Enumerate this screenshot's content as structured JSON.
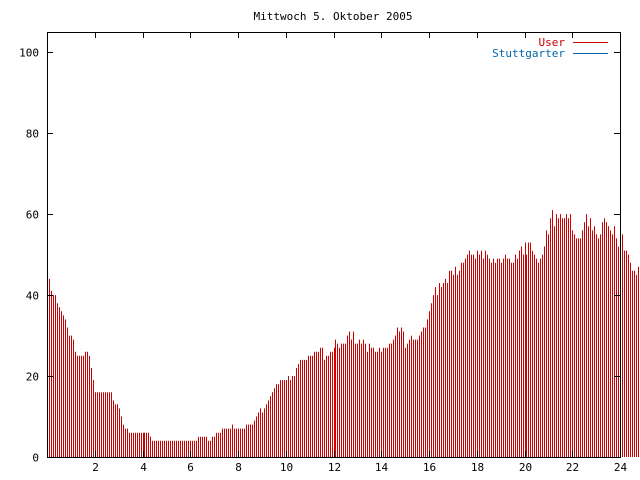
{
  "chart_data": {
    "type": "bar",
    "title": "Mittwoch 5. Oktober 2005",
    "xlabel": "",
    "ylabel": "",
    "xlim": [
      0,
      24
    ],
    "ylim": [
      0,
      105
    ],
    "x_ticks": [
      2,
      4,
      6,
      8,
      10,
      12,
      14,
      16,
      18,
      20,
      22,
      24
    ],
    "x_tick_labels": [
      "2",
      "4",
      "6",
      "8",
      "10",
      "12",
      "14",
      "16",
      "18",
      "20",
      "22",
      "24"
    ],
    "y_ticks": [
      0,
      20,
      40,
      60,
      80,
      100
    ],
    "y_tick_labels": [
      "0",
      "20",
      "40",
      "60",
      "80",
      "100"
    ],
    "grid": false,
    "legend_position": "top-right",
    "series": [
      {
        "name": "User",
        "color": "#cc0000",
        "style": "impulses",
        "step_minutes": 5,
        "values": [
          45,
          44,
          41,
          40,
          40,
          38,
          37,
          36,
          35,
          34,
          32,
          30,
          30,
          29,
          26,
          25,
          25,
          25,
          25,
          26,
          26,
          25,
          22,
          19,
          16,
          16,
          16,
          16,
          16,
          16,
          16,
          16,
          16,
          14,
          13,
          13,
          12,
          10,
          8,
          7,
          7,
          6,
          6,
          6,
          6,
          6,
          6,
          6,
          6,
          6,
          6,
          6,
          5,
          4,
          4,
          4,
          4,
          4,
          4,
          4,
          4,
          4,
          4,
          4,
          4,
          4,
          4,
          4,
          4,
          4,
          4,
          4,
          4,
          4,
          4,
          4,
          5,
          5,
          5,
          5,
          5,
          4,
          4,
          5,
          5,
          6,
          6,
          6,
          7,
          7,
          7,
          7,
          7,
          8,
          7,
          7,
          7,
          7,
          7,
          7,
          8,
          8,
          8,
          8,
          9,
          10,
          11,
          12,
          11,
          12,
          13,
          14,
          15,
          16,
          17,
          18,
          18,
          19,
          19,
          19,
          19,
          20,
          19,
          20,
          20,
          22,
          23,
          24,
          24,
          24,
          24,
          25,
          25,
          25,
          26,
          26,
          26,
          27,
          27,
          24,
          25,
          25,
          26,
          26,
          27,
          29,
          28,
          27,
          28,
          28,
          28,
          30,
          31,
          29,
          31,
          28,
          28,
          29,
          28,
          29,
          28,
          26,
          28,
          27,
          27,
          26,
          26,
          27,
          26,
          27,
          27,
          27,
          28,
          28,
          29,
          30,
          32,
          31,
          32,
          31,
          27,
          28,
          29,
          30,
          29,
          29,
          29,
          30,
          31,
          32,
          32,
          34,
          36,
          38,
          40,
          42,
          40,
          43,
          42,
          43,
          44,
          43,
          46,
          46,
          45,
          47,
          45,
          46,
          48,
          48,
          49,
          50,
          51,
          50,
          50,
          49,
          51,
          50,
          51,
          49,
          51,
          50,
          49,
          48,
          49,
          48,
          49,
          49,
          48,
          49,
          50,
          49,
          49,
          48,
          48,
          50,
          49,
          51,
          52,
          50,
          53,
          50,
          53,
          53,
          51,
          50,
          49,
          48,
          49,
          50,
          52,
          56,
          55,
          59,
          61,
          57,
          60,
          59,
          60,
          59,
          59,
          60,
          59,
          60,
          56,
          55,
          54,
          54,
          54,
          56,
          58,
          60,
          57,
          59,
          56,
          57,
          55,
          54,
          55,
          58,
          59,
          58,
          57,
          56,
          55,
          57,
          54,
          52,
          54,
          55,
          51,
          51,
          50,
          48,
          46,
          46,
          45,
          47
        ]
      },
      {
        "name": "Stuttgarter",
        "color": "#0066aa",
        "style": "line",
        "values": []
      }
    ]
  }
}
